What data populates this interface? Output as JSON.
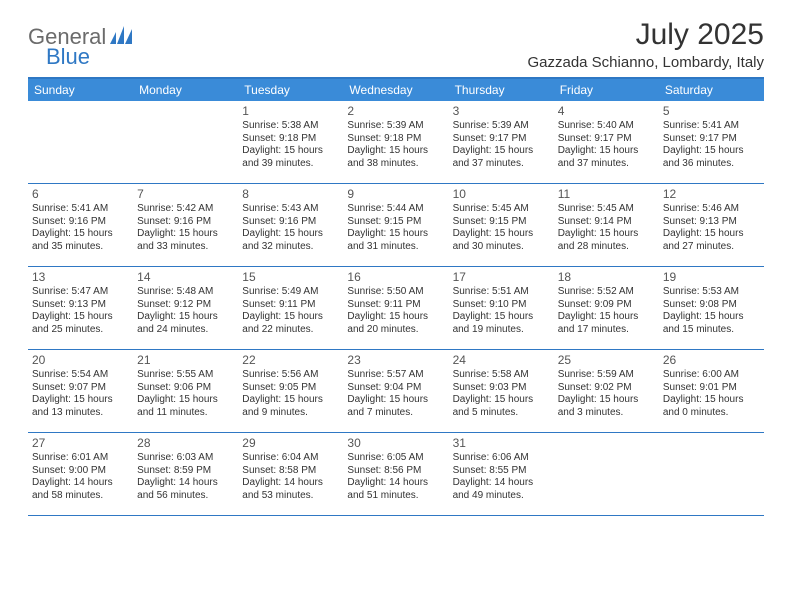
{
  "brand": {
    "part1": "General",
    "part2": "Blue"
  },
  "title": "July 2025",
  "subtitle": "Gazzada Schianno, Lombardy, Italy",
  "colors": {
    "accent": "#3a8bd8",
    "accent_border": "#2f78c4",
    "brand_blue": "#2f78c4",
    "brand_gray": "#6b6b6b",
    "text": "#333333",
    "background": "#ffffff"
  },
  "weekdays": [
    "Sunday",
    "Monday",
    "Tuesday",
    "Wednesday",
    "Thursday",
    "Friday",
    "Saturday"
  ],
  "grid": {
    "first_weekday_index": 2,
    "days_in_month": 31
  },
  "days": {
    "1": {
      "sunrise": "5:38 AM",
      "sunset": "9:18 PM",
      "daylight": "15 hours and 39 minutes."
    },
    "2": {
      "sunrise": "5:39 AM",
      "sunset": "9:18 PM",
      "daylight": "15 hours and 38 minutes."
    },
    "3": {
      "sunrise": "5:39 AM",
      "sunset": "9:17 PM",
      "daylight": "15 hours and 37 minutes."
    },
    "4": {
      "sunrise": "5:40 AM",
      "sunset": "9:17 PM",
      "daylight": "15 hours and 37 minutes."
    },
    "5": {
      "sunrise": "5:41 AM",
      "sunset": "9:17 PM",
      "daylight": "15 hours and 36 minutes."
    },
    "6": {
      "sunrise": "5:41 AM",
      "sunset": "9:16 PM",
      "daylight": "15 hours and 35 minutes."
    },
    "7": {
      "sunrise": "5:42 AM",
      "sunset": "9:16 PM",
      "daylight": "15 hours and 33 minutes."
    },
    "8": {
      "sunrise": "5:43 AM",
      "sunset": "9:16 PM",
      "daylight": "15 hours and 32 minutes."
    },
    "9": {
      "sunrise": "5:44 AM",
      "sunset": "9:15 PM",
      "daylight": "15 hours and 31 minutes."
    },
    "10": {
      "sunrise": "5:45 AM",
      "sunset": "9:15 PM",
      "daylight": "15 hours and 30 minutes."
    },
    "11": {
      "sunrise": "5:45 AM",
      "sunset": "9:14 PM",
      "daylight": "15 hours and 28 minutes."
    },
    "12": {
      "sunrise": "5:46 AM",
      "sunset": "9:13 PM",
      "daylight": "15 hours and 27 minutes."
    },
    "13": {
      "sunrise": "5:47 AM",
      "sunset": "9:13 PM",
      "daylight": "15 hours and 25 minutes."
    },
    "14": {
      "sunrise": "5:48 AM",
      "sunset": "9:12 PM",
      "daylight": "15 hours and 24 minutes."
    },
    "15": {
      "sunrise": "5:49 AM",
      "sunset": "9:11 PM",
      "daylight": "15 hours and 22 minutes."
    },
    "16": {
      "sunrise": "5:50 AM",
      "sunset": "9:11 PM",
      "daylight": "15 hours and 20 minutes."
    },
    "17": {
      "sunrise": "5:51 AM",
      "sunset": "9:10 PM",
      "daylight": "15 hours and 19 minutes."
    },
    "18": {
      "sunrise": "5:52 AM",
      "sunset": "9:09 PM",
      "daylight": "15 hours and 17 minutes."
    },
    "19": {
      "sunrise": "5:53 AM",
      "sunset": "9:08 PM",
      "daylight": "15 hours and 15 minutes."
    },
    "20": {
      "sunrise": "5:54 AM",
      "sunset": "9:07 PM",
      "daylight": "15 hours and 13 minutes."
    },
    "21": {
      "sunrise": "5:55 AM",
      "sunset": "9:06 PM",
      "daylight": "15 hours and 11 minutes."
    },
    "22": {
      "sunrise": "5:56 AM",
      "sunset": "9:05 PM",
      "daylight": "15 hours and 9 minutes."
    },
    "23": {
      "sunrise": "5:57 AM",
      "sunset": "9:04 PM",
      "daylight": "15 hours and 7 minutes."
    },
    "24": {
      "sunrise": "5:58 AM",
      "sunset": "9:03 PM",
      "daylight": "15 hours and 5 minutes."
    },
    "25": {
      "sunrise": "5:59 AM",
      "sunset": "9:02 PM",
      "daylight": "15 hours and 3 minutes."
    },
    "26": {
      "sunrise": "6:00 AM",
      "sunset": "9:01 PM",
      "daylight": "15 hours and 0 minutes."
    },
    "27": {
      "sunrise": "6:01 AM",
      "sunset": "9:00 PM",
      "daylight": "14 hours and 58 minutes."
    },
    "28": {
      "sunrise": "6:03 AM",
      "sunset": "8:59 PM",
      "daylight": "14 hours and 56 minutes."
    },
    "29": {
      "sunrise": "6:04 AM",
      "sunset": "8:58 PM",
      "daylight": "14 hours and 53 minutes."
    },
    "30": {
      "sunrise": "6:05 AM",
      "sunset": "8:56 PM",
      "daylight": "14 hours and 51 minutes."
    },
    "31": {
      "sunrise": "6:06 AM",
      "sunset": "8:55 PM",
      "daylight": "14 hours and 49 minutes."
    }
  },
  "labels": {
    "sunrise_prefix": "Sunrise: ",
    "sunset_prefix": "Sunset: ",
    "daylight_prefix": "Daylight: "
  }
}
